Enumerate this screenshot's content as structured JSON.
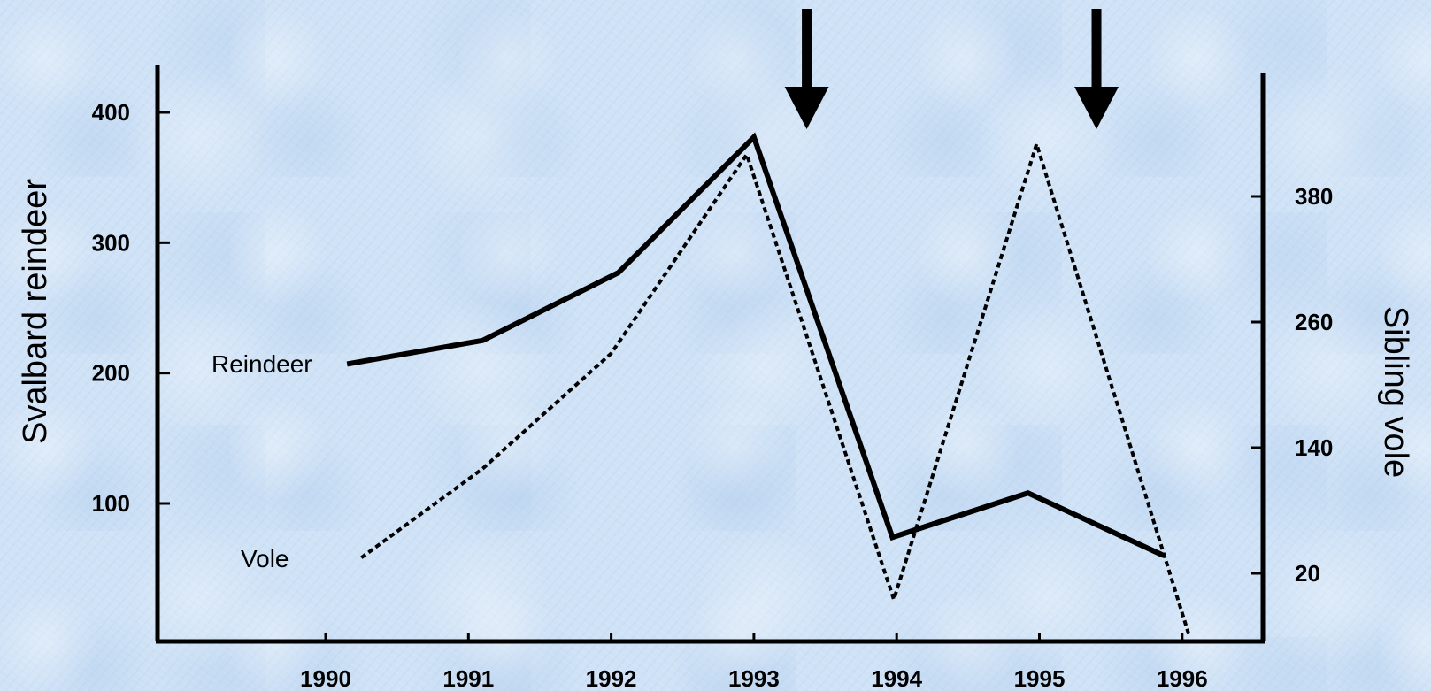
{
  "chart_data": {
    "type": "line",
    "title": "",
    "xlabel": "",
    "ylabel": "Svalbard reindeer",
    "y2label": "Sibling vole",
    "x_ticks": [
      "1990",
      "1991",
      "1992",
      "1993",
      "1994",
      "1995",
      "1996"
    ],
    "y_ticks": [
      "100",
      "200",
      "300",
      "400"
    ],
    "y_tick_values": [
      100,
      200,
      300,
      400
    ],
    "y2_ticks": [
      "20",
      "140",
      "260",
      "380"
    ],
    "y2_tick_values": [
      20,
      140,
      260,
      380
    ],
    "ylim": [
      -6,
      430
    ],
    "y2lim": [
      -44,
      493
    ],
    "xlim": [
      1988.8,
      1996.6
    ],
    "grid": false,
    "legend": "inline labels",
    "series": [
      {
        "name": "Reindeer",
        "axis": "left",
        "style": "solid",
        "x": [
          1990.15,
          1991.1,
          1992.05,
          1993.0,
          1993.97,
          1994.92,
          1995.87
        ],
        "values": [
          207,
          225,
          277,
          381,
          74,
          108,
          60
        ]
      },
      {
        "name": "Vole",
        "axis": "right",
        "style": "dotted",
        "x": [
          1990.25,
          1991.1,
          1992.0,
          1992.95,
          1993.98,
          1994.98,
          1996.05
        ],
        "values": [
          35,
          120,
          230,
          420,
          -5,
          430,
          -40
        ]
      }
    ],
    "annotations": [
      {
        "type": "down-arrow",
        "x": 1993.37
      },
      {
        "type": "down-arrow",
        "x": 1995.4
      }
    ]
  }
}
